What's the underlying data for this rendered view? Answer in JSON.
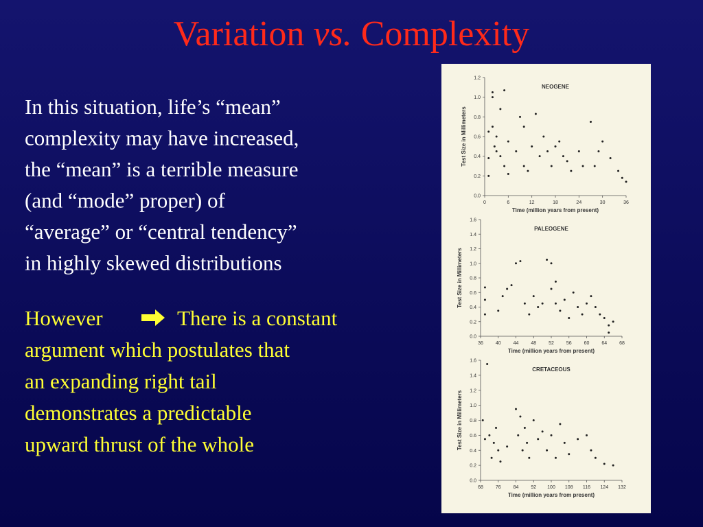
{
  "slide": {
    "title_parts": [
      "Variation",
      "vs.",
      "Complexity"
    ],
    "paragraph1": [
      "In this situation, life’s “mean”",
      "complexity may have increased,",
      "the “mean” is a terrible measure",
      "(and “mode” proper) of",
      "“average” or “central tendency”",
      "in highly skewed distributions"
    ],
    "paragraph2": {
      "lead": "However",
      "lines": [
        "There is a constant",
        "argument which postulates that",
        "an expanding right tail",
        "demonstrates a predictable",
        "upward thrust of the whole"
      ]
    }
  },
  "chart_data": [
    {
      "type": "scatter",
      "title": "NEOGENE",
      "xlabel": "Time (million years from present)",
      "ylabel": "Test Size in Millimeters",
      "color": "#222222",
      "x": [
        1,
        1,
        1,
        2,
        2,
        2,
        2.5,
        3,
        3,
        4,
        4,
        5,
        5,
        6,
        6,
        8,
        9,
        10,
        10,
        11,
        12,
        13,
        14,
        15,
        16,
        17,
        18,
        19,
        20,
        21,
        22,
        24,
        25,
        27,
        28,
        29,
        30,
        32,
        34,
        35,
        36
      ],
      "values": [
        0.65,
        0.2,
        0.38,
        1.0,
        1.05,
        0.7,
        0.5,
        0.45,
        0.6,
        0.4,
        0.88,
        1.07,
        0.3,
        0.55,
        0.22,
        0.45,
        0.8,
        0.7,
        0.3,
        0.25,
        0.5,
        0.83,
        0.4,
        0.6,
        0.45,
        0.3,
        0.5,
        0.55,
        0.4,
        0.35,
        0.25,
        0.45,
        0.3,
        0.75,
        0.3,
        0.45,
        0.55,
        0.38,
        0.25,
        0.18,
        0.14
      ],
      "xlim": [
        0,
        36
      ],
      "xticks": [
        0,
        6,
        12,
        18,
        24,
        30,
        36
      ],
      "ylim": [
        0,
        1.2
      ],
      "yticks": [
        {
          "value": 0,
          "label": "0.0"
        },
        0.2,
        0.4,
        0.6,
        0.8,
        {
          "value": 1,
          "label": "1.0"
        },
        1.2
      ]
    },
    {
      "type": "scatter",
      "title": "PALEOGENE",
      "xlabel": "Time (million years from present)",
      "ylabel": "Test Size in Millimeters",
      "color": "#222222",
      "x": [
        37,
        37,
        37,
        40,
        41,
        42,
        43,
        44,
        45,
        46,
        47,
        48,
        49,
        50,
        51,
        52,
        52,
        53,
        53,
        54,
        55,
        56,
        57,
        58,
        59,
        60,
        61,
        62,
        63,
        64,
        65,
        65,
        66
      ],
      "values": [
        0.3,
        0.5,
        0.67,
        0.35,
        0.55,
        0.65,
        0.7,
        1.0,
        1.03,
        0.45,
        0.3,
        0.55,
        0.4,
        0.45,
        1.05,
        1.0,
        0.65,
        0.75,
        0.45,
        0.35,
        0.5,
        0.25,
        0.6,
        0.4,
        0.3,
        0.45,
        0.55,
        0.4,
        0.3,
        0.25,
        0.15,
        0.05,
        0.2
      ],
      "xlim": [
        36,
        68
      ],
      "xticks": [
        36,
        40,
        44,
        48,
        52,
        56,
        60,
        64,
        68
      ],
      "ylim": [
        0,
        1.6
      ],
      "yticks": [
        {
          "value": 0,
          "label": "0.0"
        },
        0.2,
        0.4,
        0.6,
        0.8,
        {
          "value": 1,
          "label": "1.0"
        },
        1.2,
        1.4,
        1.6
      ]
    },
    {
      "type": "scatter",
      "title": "CRETACEOUS",
      "xlabel": "Time (million years from present)",
      "ylabel": "Test Size in Millimeters",
      "color": "#222222",
      "x": [
        69,
        70,
        71,
        72,
        73,
        74,
        75,
        76,
        77,
        80,
        84,
        85,
        86,
        87,
        88,
        89,
        90,
        92,
        94,
        96,
        98,
        100,
        102,
        104,
        106,
        108,
        112,
        116,
        118,
        120,
        124,
        128
      ],
      "values": [
        0.8,
        0.55,
        1.55,
        0.6,
        0.3,
        0.5,
        0.7,
        0.4,
        0.25,
        0.45,
        0.95,
        0.6,
        0.85,
        0.4,
        0.7,
        0.5,
        0.3,
        0.8,
        0.55,
        0.65,
        0.4,
        0.6,
        0.3,
        0.75,
        0.5,
        0.35,
        0.55,
        0.6,
        0.4,
        0.3,
        0.22,
        0.2
      ],
      "xlim": [
        68,
        132
      ],
      "xticks": [
        68,
        76,
        84,
        92,
        100,
        108,
        116,
        124,
        132
      ],
      "ylim": [
        0,
        1.6
      ],
      "yticks": [
        {
          "value": 0,
          "label": "0.0"
        },
        0.2,
        0.4,
        0.6,
        0.8,
        {
          "value": 1,
          "label": "1.0"
        },
        1.2,
        1.4,
        1.6
      ]
    }
  ]
}
